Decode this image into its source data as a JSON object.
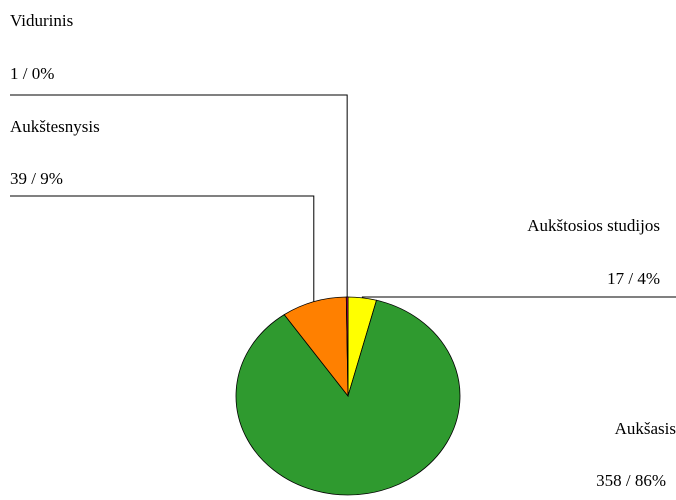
{
  "chart_data": {
    "type": "pie",
    "categories": [
      "Aukštosios studijos",
      "Aukšasis",
      "Aukštesnysis",
      "Vidurinis"
    ],
    "values": [
      17,
      358,
      39,
      1
    ],
    "value_labels": [
      "17 / 4%",
      "358 / 86%",
      "39 / 9%",
      "1 / 0%"
    ],
    "colors": [
      "#ffff00",
      "#2f9a2f",
      "#ff8000",
      "#cc0066"
    ]
  }
}
